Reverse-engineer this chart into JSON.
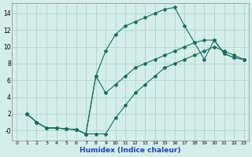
{
  "xlabel": "Humidex (Indice chaleur)",
  "background_color": "#d4eeea",
  "grid_color": "#aed4cc",
  "line_color": "#1a6b5a",
  "xlim": [
    -0.5,
    23.5
  ],
  "ylim": [
    -1.2,
    15.2
  ],
  "xticks": [
    0,
    1,
    2,
    3,
    4,
    5,
    6,
    7,
    8,
    9,
    10,
    11,
    12,
    13,
    14,
    15,
    16,
    17,
    18,
    19,
    20,
    21,
    22,
    23
  ],
  "yticks": [
    0,
    2,
    4,
    6,
    8,
    10,
    12,
    14
  ],
  "ytick_labels": [
    "-0",
    "2",
    "4",
    "6",
    "8",
    "10",
    "12",
    "14"
  ],
  "curve1_x": [
    1,
    2,
    3,
    4,
    5,
    6,
    7,
    8,
    9,
    10,
    11,
    12,
    13,
    14,
    15,
    16,
    17,
    18,
    19,
    20,
    21,
    22,
    23
  ],
  "curve1_y": [
    2.0,
    1.0,
    0.3,
    0.3,
    0.2,
    0.1,
    -0.4,
    -0.4,
    -0.4,
    1.5,
    3.0,
    4.5,
    5.5,
    6.5,
    7.5,
    8.0,
    8.5,
    9.0,
    9.5,
    10.0,
    9.5,
    9.0,
    8.5
  ],
  "curve2_x": [
    1,
    2,
    3,
    4,
    5,
    6,
    7,
    8,
    9,
    10,
    11,
    12,
    13,
    14,
    15,
    16,
    17,
    18,
    19,
    20,
    21,
    22,
    23
  ],
  "curve2_y": [
    2.0,
    1.0,
    0.3,
    0.3,
    0.2,
    0.1,
    -0.4,
    6.5,
    9.5,
    11.5,
    12.5,
    13.0,
    13.5,
    14.0,
    14.5,
    14.7,
    12.5,
    10.5,
    8.5,
    10.8,
    9.2,
    8.7,
    8.5
  ],
  "curve3_x": [
    1,
    2,
    3,
    4,
    5,
    6,
    7,
    8,
    9,
    10,
    11,
    12,
    13,
    14,
    15,
    16,
    17,
    18,
    19,
    20,
    21,
    22,
    23
  ],
  "curve3_y": [
    2.0,
    1.0,
    0.3,
    0.3,
    0.2,
    0.1,
    -0.4,
    6.5,
    4.5,
    5.5,
    6.5,
    7.5,
    8.0,
    8.5,
    9.0,
    9.5,
    10.0,
    10.5,
    10.8,
    10.8,
    9.2,
    8.7,
    8.5
  ]
}
